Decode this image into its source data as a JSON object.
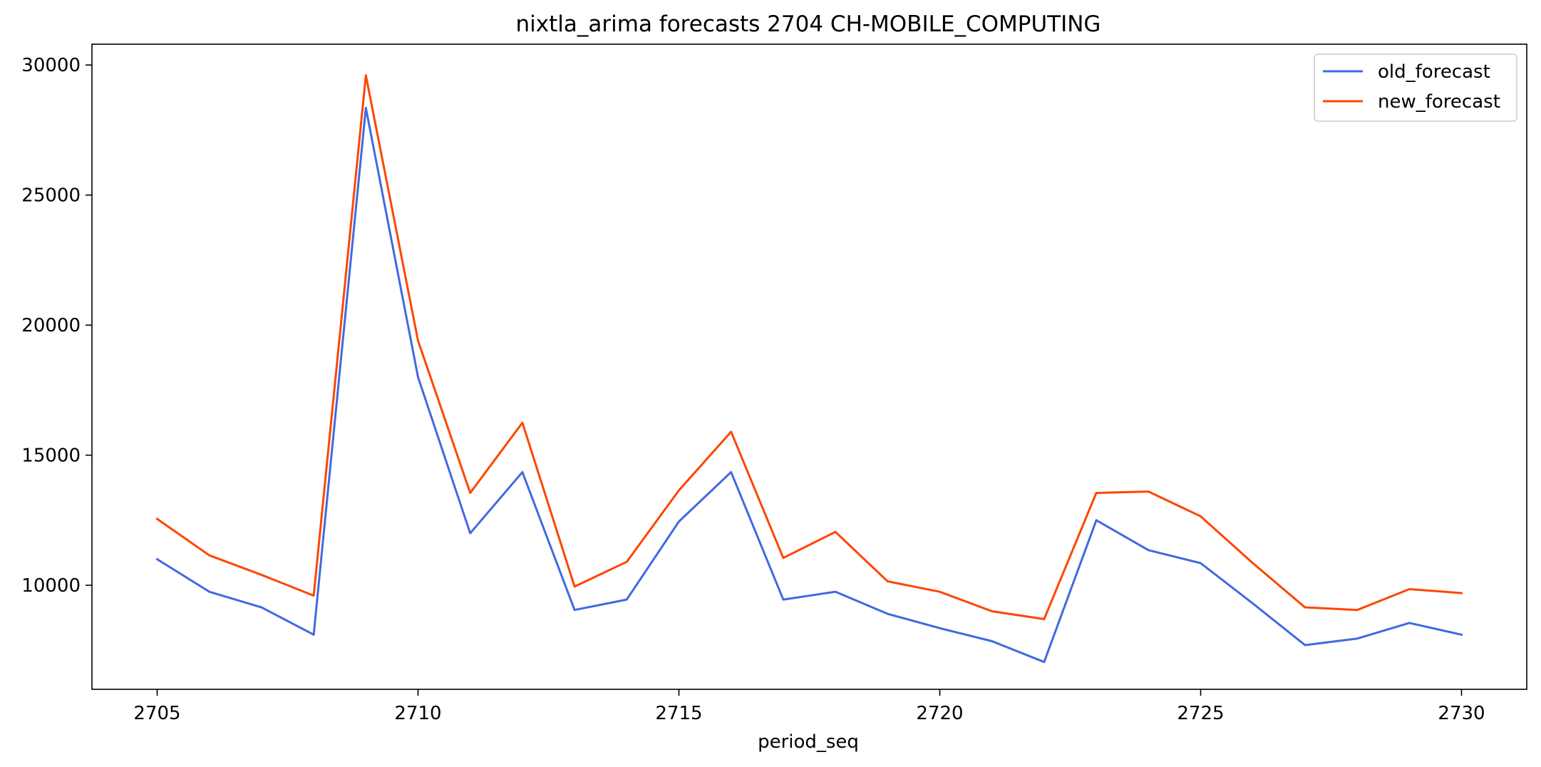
{
  "chart_data": {
    "type": "line",
    "title": "nixtla_arima forecasts 2704 CH-MOBILE_COMPUTING",
    "xlabel": "period_seq",
    "ylabel": "",
    "x": [
      2705,
      2706,
      2707,
      2708,
      2709,
      2710,
      2711,
      2712,
      2713,
      2714,
      2715,
      2716,
      2717,
      2718,
      2719,
      2720,
      2721,
      2722,
      2723,
      2724,
      2725,
      2726,
      2727,
      2728,
      2729,
      2730
    ],
    "xlim": [
      2703.75,
      2731.25
    ],
    "ylim": [
      6000,
      30800
    ],
    "xticks": [
      2705,
      2710,
      2715,
      2720,
      2725,
      2730
    ],
    "yticks": [
      10000,
      15000,
      20000,
      25000,
      30000
    ],
    "xtick_labels": [
      "2705",
      "2710",
      "2715",
      "2720",
      "2725",
      "2730"
    ],
    "ytick_labels": [
      "10000",
      "15000",
      "20000",
      "25000",
      "30000"
    ],
    "grid": false,
    "legend_position": "top-right",
    "series": [
      {
        "name": "old_forecast",
        "color": "#4169e1",
        "values": [
          11000,
          9750,
          9150,
          8100,
          28350,
          18000,
          12000,
          14350,
          9050,
          9450,
          12450,
          14350,
          9450,
          9750,
          8900,
          8350,
          7850,
          7050,
          12500,
          11350,
          10850,
          9300,
          7700,
          7950,
          8550,
          8100
        ]
      },
      {
        "name": "new_forecast",
        "color": "#ff4500",
        "values": [
          12550,
          11150,
          10400,
          9600,
          29600,
          19400,
          13550,
          16250,
          9950,
          10900,
          13650,
          15900,
          11050,
          12050,
          10150,
          9750,
          9000,
          8700,
          13550,
          13600,
          12650,
          10850,
          9150,
          9050,
          9850,
          9700
        ]
      }
    ]
  }
}
